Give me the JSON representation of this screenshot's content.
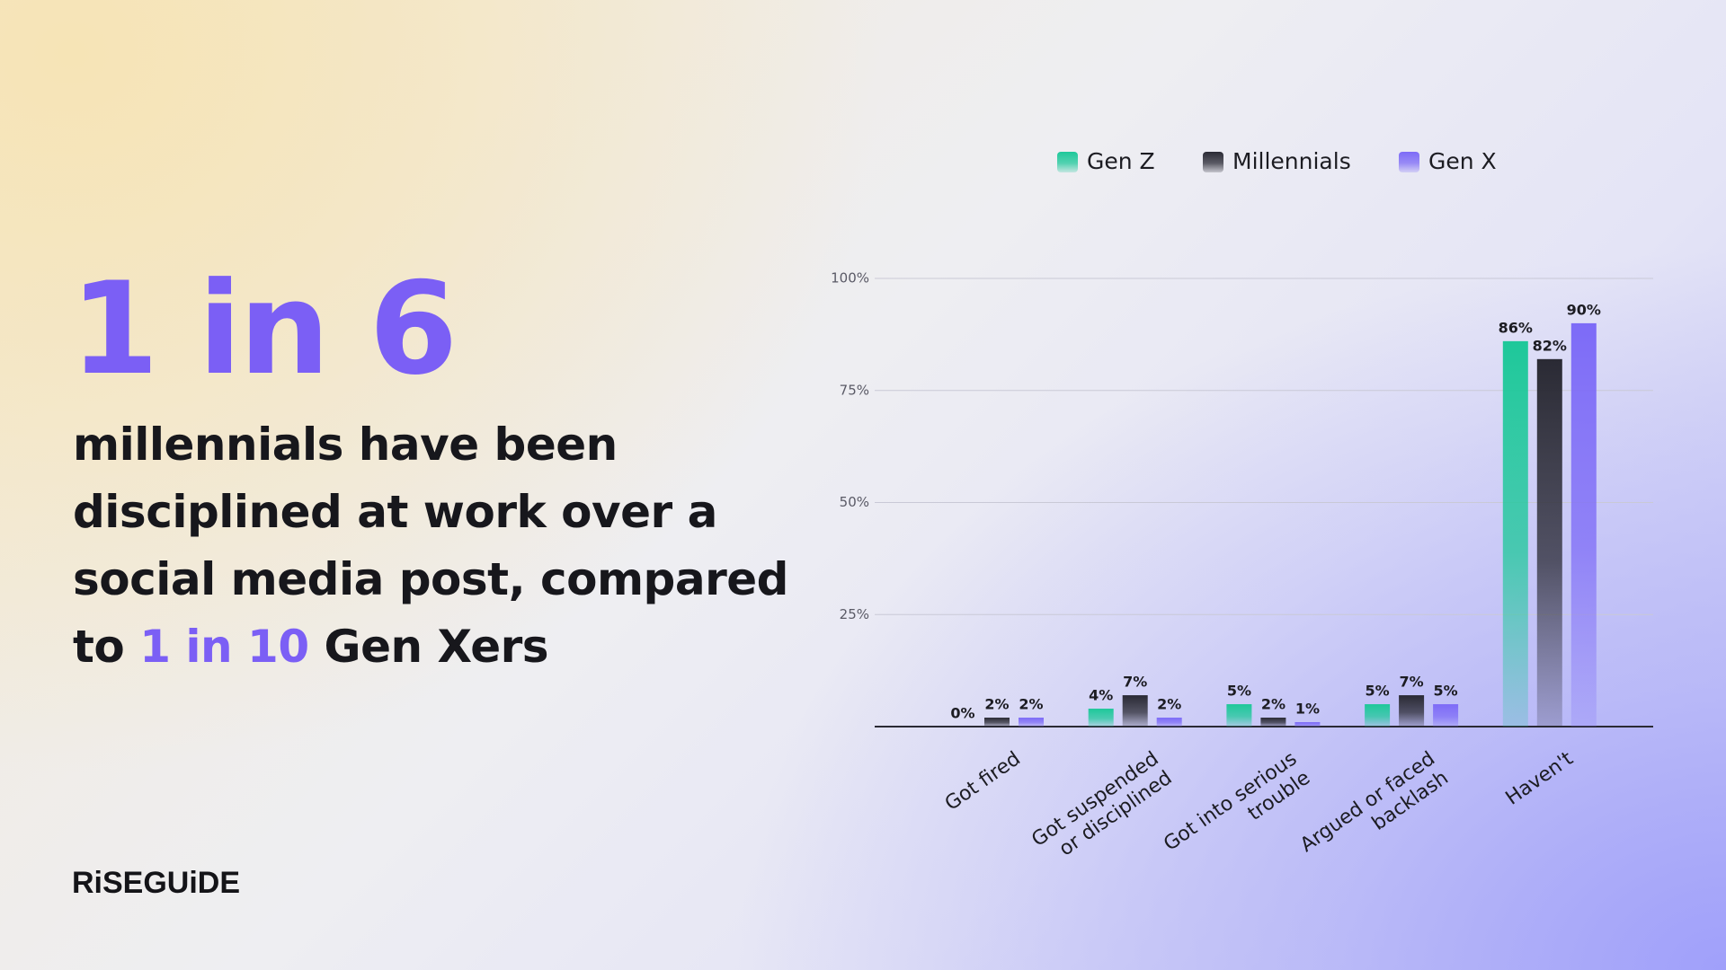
{
  "headline": {
    "stat": "1 in 6",
    "lines": [
      "millennials have been",
      "disciplined at work over a",
      "social media post, compared"
    ],
    "last_line": {
      "prefix": "to",
      "highlight": "1 in 10",
      "suffix": "Gen Xers"
    }
  },
  "logo": "RiSEGUiDE",
  "chart_data": {
    "type": "bar",
    "categories": [
      [
        "Got fired"
      ],
      [
        "Got suspended",
        "or disciplined"
      ],
      [
        "Got into serious",
        "trouble"
      ],
      [
        "Argued or faced",
        "backlash"
      ],
      [
        "Haven't"
      ]
    ],
    "series": [
      {
        "name": "Gen Z",
        "color": "#1ec89a",
        "values": [
          0,
          4,
          5,
          5,
          86
        ],
        "value_labels": [
          "0%",
          "4%",
          "5%",
          "5%",
          "86%"
        ]
      },
      {
        "name": "Millennials",
        "color": "#2a2a34",
        "values": [
          2,
          7,
          2,
          7,
          82
        ],
        "value_labels": [
          "2%",
          "7%",
          "2%",
          "7%",
          "82%"
        ]
      },
      {
        "name": "Gen X",
        "color": "#7d6bf7",
        "values": [
          2,
          2,
          1,
          5,
          90
        ],
        "value_labels": [
          "2%",
          "2%",
          "1%",
          "5%",
          "90%"
        ]
      }
    ],
    "ylim": [
      0,
      100
    ],
    "yticks": [
      {
        "value": 25,
        "label": "25%"
      },
      {
        "value": 50,
        "label": "50%"
      },
      {
        "value": 75,
        "label": "75%"
      },
      {
        "value": 100,
        "label": "100%"
      }
    ],
    "grid": true,
    "legend": "top"
  }
}
